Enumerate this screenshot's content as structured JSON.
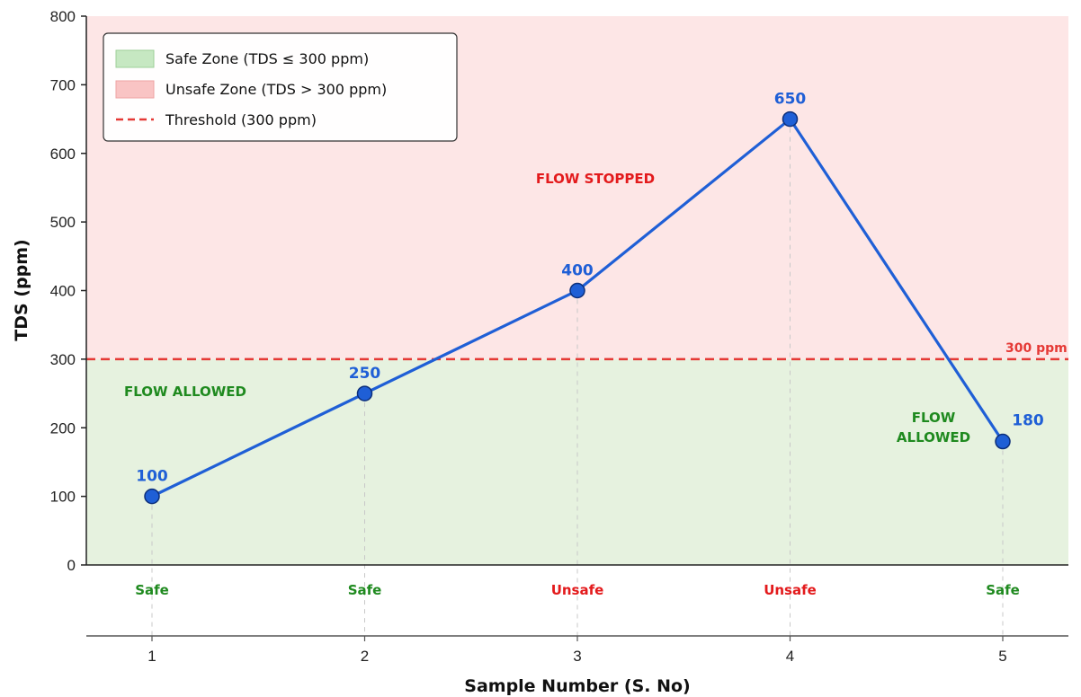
{
  "chart_data": {
    "type": "line",
    "title": "",
    "xlabel": "Sample Number (S. No)",
    "ylabel": "TDS (ppm)",
    "x": [
      1,
      2,
      3,
      4,
      5
    ],
    "x_tick_labels": [
      "1",
      "2",
      "3",
      "4",
      "5"
    ],
    "ylim": [
      0,
      800
    ],
    "y_ticks": [
      0,
      100,
      200,
      300,
      400,
      500,
      600,
      700,
      800
    ],
    "series": [
      {
        "values": [
          100,
          250,
          400,
          650,
          180
        ],
        "data_labels": [
          "100",
          "250",
          "400",
          "650",
          "180"
        ],
        "color": "#1f5fd6"
      }
    ],
    "status_labels": [
      "Safe",
      "Safe",
      "Unsafe",
      "Unsafe",
      "Safe"
    ],
    "threshold": {
      "value": 300,
      "label": "300 ppm",
      "color": "#e53935"
    },
    "zones": [
      {
        "name": "safe",
        "from": 0,
        "to": 300,
        "color": "#e6f2df"
      },
      {
        "name": "unsafe",
        "from": 300,
        "to": 800,
        "color": "#fde6e6"
      }
    ],
    "annotations": [
      {
        "text": "FLOW STOPPED",
        "color": "#e31a1c",
        "position": "upper-middle"
      },
      {
        "text": "FLOW ALLOWED",
        "color": "#1f8a1f",
        "position": "lower-left"
      },
      {
        "text_lines": [
          "FLOW",
          "ALLOWED"
        ],
        "color": "#1f8a1f",
        "position": "lower-right"
      }
    ],
    "legend": {
      "position": "top-left",
      "entries": [
        {
          "label": "Safe Zone (TDS ≤ 300 ppm)",
          "kind": "patch",
          "fill": "#c6e8c2",
          "stroke": "#9ecf98"
        },
        {
          "label": "Unsafe Zone (TDS > 300 ppm)",
          "kind": "patch",
          "fill": "#f9c4c4",
          "stroke": "#eea3a3"
        },
        {
          "label": "Threshold (300 ppm)",
          "kind": "dashed-line",
          "stroke": "#e53935"
        }
      ]
    },
    "colors": {
      "safe_text": "#1f8a1f",
      "unsafe_text": "#e31a1c",
      "line": "#1f5fd6"
    },
    "grid": false
  }
}
